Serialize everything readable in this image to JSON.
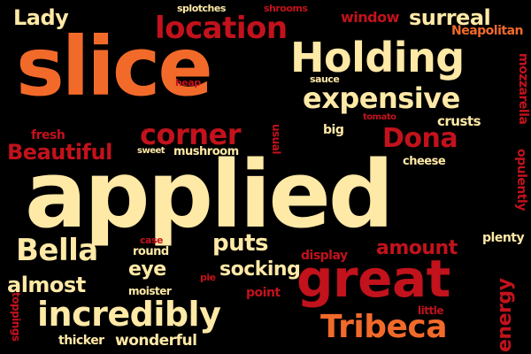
{
  "words": {
    "lady": "Lady",
    "splotches": "splotches",
    "shrooms": "shrooms",
    "window": "window",
    "surreal": "surreal",
    "location": "location",
    "neapolitan": "Neapolitan",
    "slice": "slice",
    "holding": "Holding",
    "sauce": "sauce",
    "heap": "heap",
    "mozzarella": "mozzarella",
    "expensive": "expensive",
    "tomato": "tomato",
    "crusts": "crusts",
    "fresh": "fresh",
    "corner": "corner",
    "big": "big",
    "dona": "Dona",
    "usual": "usual",
    "beautiful": "Beautiful",
    "sweet": "sweet",
    "mushroom": "mushroom",
    "cheese": "cheese",
    "opulently": "opulently",
    "applied": "applied",
    "case": "case",
    "round": "round",
    "bella": "Bella",
    "puts": "puts",
    "amount": "amount",
    "plenty": "plenty",
    "eye": "eye",
    "display": "display",
    "socking": "socking",
    "almost": "almost",
    "pie": "pie",
    "great": "great",
    "energy": "energy",
    "moister": "moister",
    "point": "point",
    "toppings": "toppings",
    "incredibly": "incredibly",
    "little": "little",
    "tribeca": "Tribeca",
    "thicker": "thicker",
    "wonderful": "wonderful"
  },
  "colors": {
    "background": "#000000",
    "cream": "#FFE9A6",
    "orange": "#F26A2A",
    "red": "#C2121C",
    "dark_red": "#9E0F14"
  }
}
